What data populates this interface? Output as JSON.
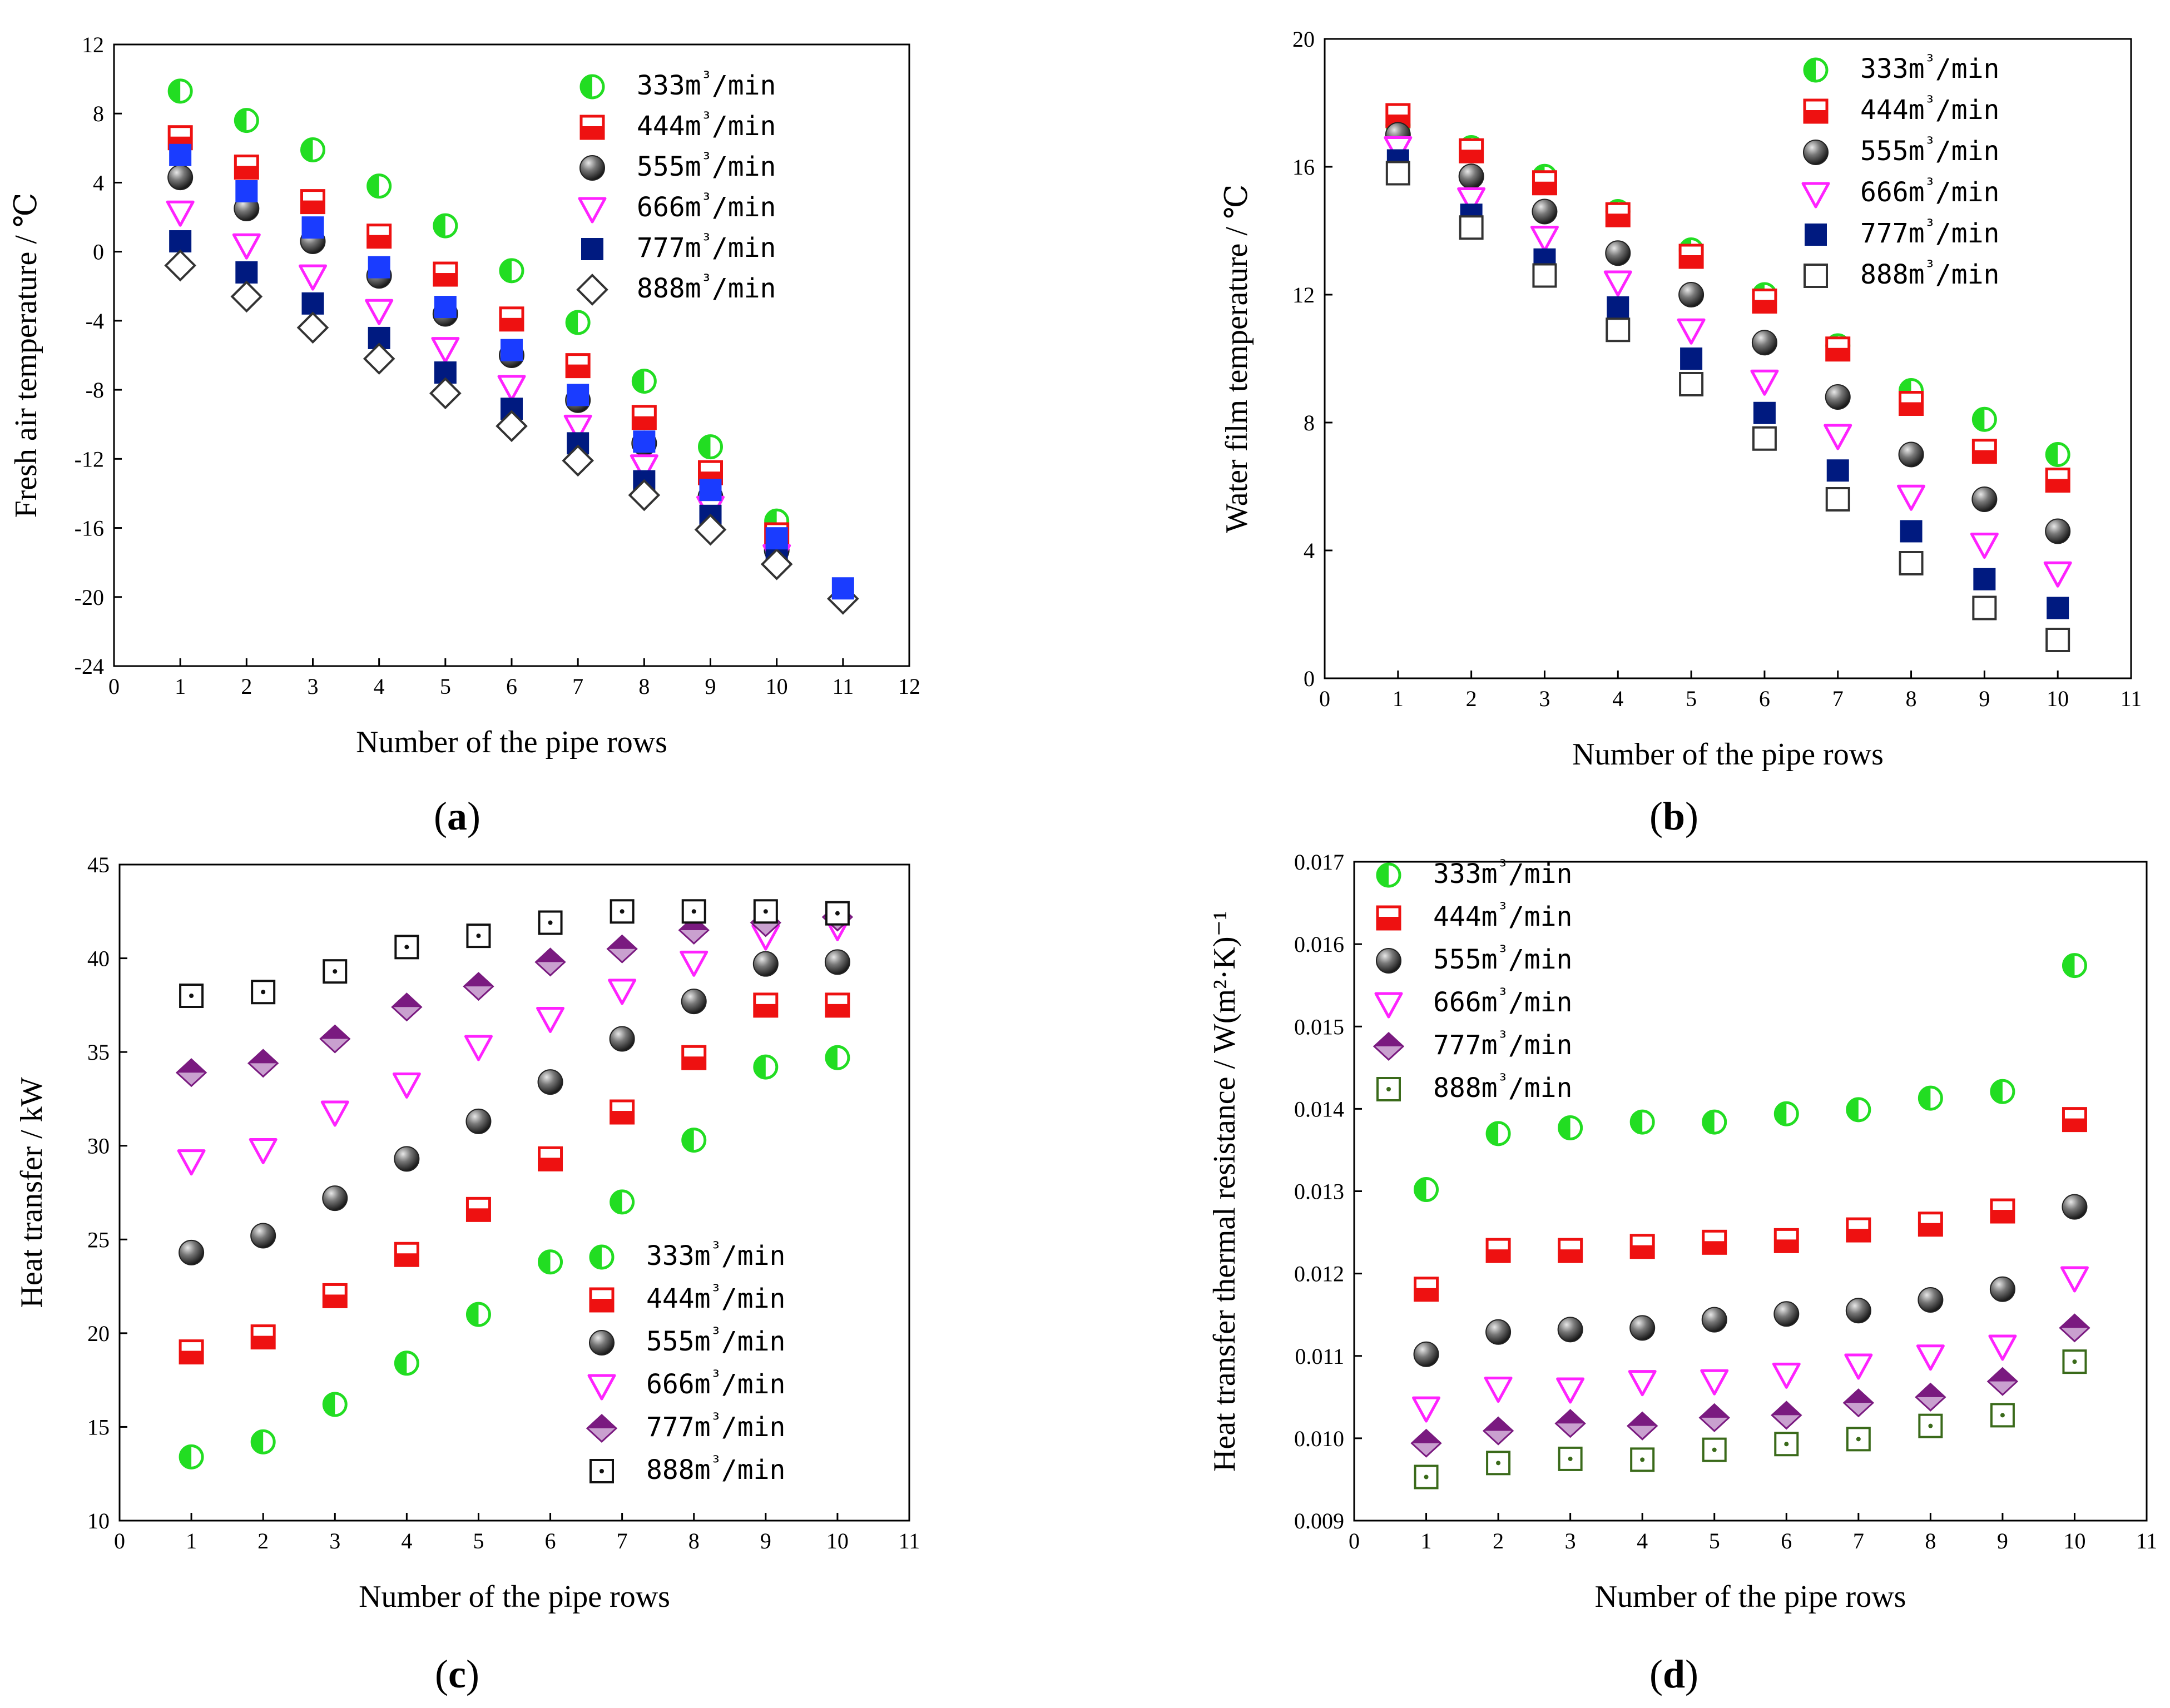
{
  "colors": {
    "green": "#22dd22",
    "red": "#ee1111",
    "gray": "#555555",
    "magenta": "#ff22ff",
    "navy": "#001a80",
    "blue": "#1a3cff",
    "purple": "#7a1a80",
    "olive": "#3a6a1a"
  },
  "panels": [
    {
      "tag_open": "(",
      "tag_letter": "a",
      "tag_close": ")"
    },
    {
      "tag_open": "(",
      "tag_letter": "b",
      "tag_close": ")"
    },
    {
      "tag_open": "(",
      "tag_letter": "c",
      "tag_close": ")"
    },
    {
      "tag_open": "(",
      "tag_letter": "d",
      "tag_close": ")"
    }
  ],
  "chart_data": [
    {
      "type": "scatter",
      "panel": "a",
      "xlabel": "Number of the pipe rows",
      "ylabel": "Fresh air temperature / ℃",
      "xlim": [
        0,
        12
      ],
      "ylim": [
        -24,
        12
      ],
      "xticks": [
        "0",
        "1",
        "2",
        "3",
        "4",
        "5",
        "6",
        "7",
        "8",
        "9",
        "10",
        "11",
        "12"
      ],
      "yticks": [
        "-24",
        "-20",
        "-16",
        "-12",
        "-8",
        "-4",
        "0",
        "4",
        "8",
        "12"
      ],
      "legend_position": "top-right",
      "series": [
        {
          "name": "333",
          "unit": "m³/min",
          "marker": "half-circle",
          "color": "green",
          "x": [
            1,
            2,
            3,
            4,
            5,
            6,
            7,
            8,
            9,
            10
          ],
          "values": [
            9.3,
            7.6,
            5.9,
            3.8,
            1.5,
            -1.1,
            -4.1,
            -7.5,
            -11.3,
            -15.6
          ]
        },
        {
          "name": "444",
          "unit": "m³/min",
          "marker": "half-square",
          "color": "red",
          "x": [
            1,
            2,
            3,
            4,
            5,
            6,
            7,
            8,
            9,
            10
          ],
          "values": [
            6.6,
            4.9,
            2.9,
            0.9,
            -1.3,
            -3.9,
            -6.6,
            -9.6,
            -12.8,
            -16.4
          ]
        },
        {
          "name": "555",
          "unit": "m³/min",
          "marker": "sphere",
          "color": "gray",
          "x": [
            1,
            2,
            3,
            4,
            5,
            6,
            7,
            8,
            9,
            10
          ],
          "values": [
            4.3,
            2.5,
            0.6,
            -1.4,
            -3.6,
            -6.0,
            -8.6,
            -11.1,
            -14.2,
            -17.3
          ]
        },
        {
          "name": "666",
          "unit": "m³/min",
          "marker": "triangle-down",
          "color": "magenta",
          "x": [
            1,
            2,
            3,
            4,
            5,
            6,
            7,
            8,
            9,
            10
          ],
          "values": [
            2.3,
            0.4,
            -1.4,
            -3.4,
            -5.6,
            -7.8,
            -10.1,
            -12.4,
            -14.8,
            -17.6
          ]
        },
        {
          "name": "777",
          "unit": "m³/min",
          "marker": "square",
          "color": "navy",
          "x": [
            1,
            2,
            3,
            4,
            5,
            6,
            7,
            8,
            9,
            10
          ],
          "values": [
            0.6,
            -1.2,
            -3.0,
            -5.0,
            -7.0,
            -9.1,
            -11.1,
            -13.3,
            -15.3,
            -17.5
          ]
        },
        {
          "name": "888",
          "unit": "m³/min",
          "marker": "diamond-open",
          "color": "gray",
          "x": [
            1,
            2,
            3,
            4,
            5,
            6,
            7,
            8,
            9,
            10,
            11
          ],
          "values": [
            -0.8,
            -2.6,
            -4.4,
            -6.2,
            -8.2,
            -10.1,
            -12.1,
            -14.1,
            -16.1,
            -18.1,
            -20.1
          ]
        },
        {
          "name": "",
          "unit": "",
          "marker": "square",
          "color": "blue",
          "legend": false,
          "x": [
            1,
            2,
            3,
            4,
            5,
            6,
            7,
            8,
            9,
            10,
            11
          ],
          "values": [
            5.6,
            3.5,
            1.4,
            -0.9,
            -3.2,
            -5.7,
            -8.3,
            -11.0,
            -13.8,
            -16.6,
            -19.5
          ]
        }
      ]
    },
    {
      "type": "scatter",
      "panel": "b",
      "xlabel": "Number of the pipe rows",
      "ylabel": "Water film temperature / ℃",
      "xlim": [
        0,
        11
      ],
      "ylim": [
        0,
        20
      ],
      "xticks": [
        "0",
        "1",
        "2",
        "3",
        "4",
        "5",
        "6",
        "7",
        "8",
        "9",
        "10",
        "11"
      ],
      "yticks": [
        "0",
        "4",
        "8",
        "12",
        "16",
        "20"
      ],
      "legend_position": "top-right",
      "series": [
        {
          "name": "333",
          "unit": "m³/min",
          "marker": "half-circle",
          "color": "green",
          "x": [
            1,
            2,
            3,
            4,
            5,
            6,
            7,
            8,
            9,
            10
          ],
          "values": [
            17.3,
            16.6,
            15.7,
            14.6,
            13.4,
            12.0,
            10.4,
            9.0,
            8.1,
            7.0
          ]
        },
        {
          "name": "444",
          "unit": "m³/min",
          "marker": "half-square",
          "color": "red",
          "x": [
            1,
            2,
            3,
            4,
            5,
            6,
            7,
            8,
            9,
            10
          ],
          "values": [
            17.6,
            16.5,
            15.5,
            14.5,
            13.2,
            11.8,
            10.3,
            8.6,
            7.1,
            6.2
          ]
        },
        {
          "name": "555",
          "unit": "m³/min",
          "marker": "sphere",
          "color": "gray",
          "x": [
            1,
            2,
            3,
            4,
            5,
            6,
            7,
            8,
            9,
            10
          ],
          "values": [
            17.0,
            15.7,
            14.6,
            13.3,
            12.0,
            10.5,
            8.8,
            7.0,
            5.6,
            4.6
          ]
        },
        {
          "name": "666",
          "unit": "m³/min",
          "marker": "triangle-down",
          "color": "magenta",
          "x": [
            1,
            2,
            3,
            4,
            5,
            6,
            7,
            8,
            9,
            10
          ],
          "values": [
            16.6,
            15.0,
            13.8,
            12.4,
            10.9,
            9.3,
            7.6,
            5.7,
            4.2,
            3.3
          ]
        },
        {
          "name": "777",
          "unit": "m³/min",
          "marker": "square",
          "color": "navy",
          "x": [
            1,
            2,
            3,
            4,
            5,
            6,
            7,
            8,
            9,
            10
          ],
          "values": [
            16.2,
            14.5,
            13.1,
            11.6,
            10.0,
            8.3,
            6.5,
            4.6,
            3.1,
            2.2
          ]
        },
        {
          "name": "888",
          "unit": "m³/min",
          "marker": "square-open",
          "color": "gray",
          "x": [
            1,
            2,
            3,
            4,
            5,
            6,
            7,
            8,
            9,
            10
          ],
          "values": [
            15.8,
            14.1,
            12.6,
            10.9,
            9.2,
            7.5,
            5.6,
            3.6,
            2.2,
            1.2
          ]
        }
      ]
    },
    {
      "type": "scatter",
      "panel": "c",
      "xlabel": "Number of the pipe rows",
      "ylabel": "Heat transfer  / kW",
      "xlim": [
        0,
        11
      ],
      "ylim": [
        10,
        45
      ],
      "xticks": [
        "0",
        "1",
        "2",
        "3",
        "4",
        "5",
        "6",
        "7",
        "8",
        "9",
        "10",
        "11"
      ],
      "yticks": [
        "10",
        "15",
        "20",
        "25",
        "30",
        "35",
        "40",
        "45"
      ],
      "legend_position": "bottom-right",
      "series": [
        {
          "name": "333",
          "unit": "m³/min",
          "marker": "half-circle",
          "color": "green",
          "x": [
            1,
            2,
            3,
            4,
            5,
            6,
            7,
            8,
            9,
            10
          ],
          "values": [
            13.4,
            14.2,
            16.2,
            18.4,
            21.0,
            23.8,
            27.0,
            30.3,
            34.2,
            34.7
          ]
        },
        {
          "name": "444",
          "unit": "m³/min",
          "marker": "half-square",
          "color": "red",
          "x": [
            1,
            2,
            3,
            4,
            5,
            6,
            7,
            8,
            9,
            10
          ],
          "values": [
            19.0,
            19.8,
            22.0,
            24.2,
            26.6,
            29.3,
            31.8,
            34.7,
            37.5,
            37.5
          ]
        },
        {
          "name": "555",
          "unit": "m³/min",
          "marker": "sphere",
          "color": "gray",
          "x": [
            1,
            2,
            3,
            4,
            5,
            6,
            7,
            8,
            9,
            10
          ],
          "values": [
            24.3,
            25.2,
            27.2,
            29.3,
            31.3,
            33.4,
            35.7,
            37.7,
            39.7,
            39.8
          ]
        },
        {
          "name": "666",
          "unit": "m³/min",
          "marker": "triangle-down",
          "color": "magenta",
          "x": [
            1,
            2,
            3,
            4,
            5,
            6,
            7,
            8,
            9,
            10
          ],
          "values": [
            29.2,
            29.8,
            31.8,
            33.3,
            35.3,
            36.8,
            38.3,
            39.8,
            41.2,
            41.7
          ]
        },
        {
          "name": "777",
          "unit": "m³/min",
          "marker": "diamond-half",
          "color": "purple",
          "x": [
            1,
            2,
            3,
            4,
            5,
            6,
            7,
            8,
            9,
            10
          ],
          "values": [
            33.9,
            34.4,
            35.7,
            37.4,
            38.5,
            39.8,
            40.5,
            41.5,
            41.9,
            42.2
          ]
        },
        {
          "name": "888",
          "unit": "m³/min",
          "marker": "square-dot",
          "color": "gray",
          "x": [
            1,
            2,
            3,
            4,
            5,
            6,
            7,
            8,
            9,
            10
          ],
          "values": [
            38.0,
            38.2,
            39.3,
            40.6,
            41.2,
            41.9,
            42.5,
            42.5,
            42.5,
            42.4
          ]
        }
      ]
    },
    {
      "type": "scatter",
      "panel": "d",
      "xlabel": "Number of the pipe rows",
      "ylabel": "Heat transfer thermal resistance / W(m²·K)⁻¹",
      "xlim": [
        0,
        11
      ],
      "ylim": [
        0.009,
        0.017
      ],
      "xticks": [
        "0",
        "1",
        "2",
        "3",
        "4",
        "5",
        "6",
        "7",
        "8",
        "9",
        "10",
        "11"
      ],
      "yticks": [
        "0.009",
        "0.010",
        "0.011",
        "0.012",
        "0.013",
        "0.014",
        "0.015",
        "0.016",
        "0.017"
      ],
      "legend_position": "top-left",
      "series": [
        {
          "name": "333",
          "unit": "m³/min",
          "marker": "half-circle",
          "color": "green",
          "x": [
            1,
            2,
            3,
            4,
            5,
            6,
            7,
            8,
            9,
            10
          ],
          "values": [
            0.01302,
            0.0137,
            0.01377,
            0.01384,
            0.01384,
            0.01394,
            0.01399,
            0.01413,
            0.01421,
            0.01574
          ]
        },
        {
          "name": "444",
          "unit": "m³/min",
          "marker": "half-square",
          "color": "red",
          "x": [
            1,
            2,
            3,
            4,
            5,
            6,
            7,
            8,
            9,
            10
          ],
          "values": [
            0.01181,
            0.01228,
            0.01228,
            0.01233,
            0.01238,
            0.0124,
            0.01253,
            0.0126,
            0.01276,
            0.01387
          ]
        },
        {
          "name": "555",
          "unit": "m³/min",
          "marker": "sphere",
          "color": "gray",
          "x": [
            1,
            2,
            3,
            4,
            5,
            6,
            7,
            8,
            9,
            10
          ],
          "values": [
            0.01102,
            0.01129,
            0.01132,
            0.01134,
            0.01144,
            0.01151,
            0.01155,
            0.01168,
            0.01181,
            0.01281
          ]
        },
        {
          "name": "666",
          "unit": "m³/min",
          "marker": "triangle-down",
          "color": "magenta",
          "x": [
            1,
            2,
            3,
            4,
            5,
            6,
            7,
            8,
            9,
            10
          ],
          "values": [
            0.01037,
            0.01061,
            0.0106,
            0.01069,
            0.0107,
            0.01078,
            0.01089,
            0.011,
            0.01112,
            0.01195
          ]
        },
        {
          "name": "777",
          "unit": "m³/min",
          "marker": "diamond-half",
          "color": "purple",
          "x": [
            1,
            2,
            3,
            4,
            5,
            6,
            7,
            8,
            9,
            10
          ],
          "values": [
            0.00994,
            0.01009,
            0.01018,
            0.01015,
            0.01025,
            0.01028,
            0.01043,
            0.0105,
            0.01069,
            0.01134
          ]
        },
        {
          "name": "888",
          "unit": "m³/min",
          "marker": "square-dot-open",
          "color": "olive",
          "x": [
            1,
            2,
            3,
            4,
            5,
            6,
            7,
            8,
            9,
            10
          ],
          "values": [
            0.00953,
            0.0097,
            0.00975,
            0.00974,
            0.00986,
            0.00993,
            0.00999,
            0.01015,
            0.01028,
            0.01093
          ]
        }
      ]
    }
  ]
}
